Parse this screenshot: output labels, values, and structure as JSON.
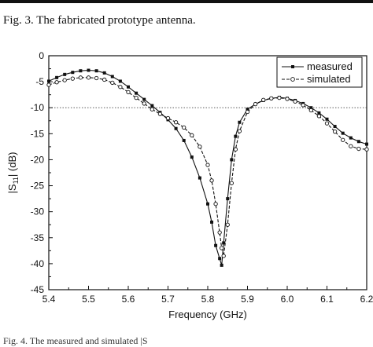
{
  "caption_above": "Fig. 3.   The fabricated prototype antenna.",
  "caption_below": "Fig. 4.   The measured and simulated |S",
  "chart_data": {
    "type": "line",
    "title": "",
    "xlabel": "Frequency (GHz)",
    "ylabel": "|S11| (dB)",
    "ylabel_parts": {
      "main": "|S",
      "sub": "11",
      "end": "| (dB)"
    },
    "xlim": [
      5.4,
      6.2
    ],
    "ylim": [
      -45,
      0
    ],
    "xticks": [
      "5.4",
      "5.5",
      "5.6",
      "5.7",
      "5.8",
      "5.9",
      "6.0",
      "6.1",
      "6.2"
    ],
    "yticks": [
      "0",
      "-5",
      "-10",
      "-15",
      "-20",
      "-25",
      "-30",
      "-35",
      "-40",
      "-45"
    ],
    "reference_line": {
      "y": -10,
      "style": "dotted"
    },
    "legend": {
      "placement": "top-right"
    },
    "grid": false,
    "series": [
      {
        "name": "measured",
        "marker": "filled-square",
        "x": [
          5.4,
          5.42,
          5.44,
          5.46,
          5.48,
          5.5,
          5.52,
          5.54,
          5.56,
          5.58,
          5.6,
          5.62,
          5.64,
          5.66,
          5.68,
          5.7,
          5.72,
          5.74,
          5.76,
          5.78,
          5.8,
          5.81,
          5.82,
          5.83,
          5.835,
          5.84,
          5.85,
          5.86,
          5.87,
          5.88,
          5.9,
          5.92,
          5.94,
          5.96,
          5.98,
          6.0,
          6.02,
          6.04,
          6.06,
          6.08,
          6.1,
          6.12,
          6.14,
          6.16,
          6.18,
          6.2
        ],
        "y": [
          -4.9,
          -4.2,
          -3.6,
          -3.2,
          -2.9,
          -2.8,
          -2.9,
          -3.3,
          -4.0,
          -4.9,
          -6.0,
          -7.2,
          -8.4,
          -9.6,
          -10.9,
          -12.3,
          -14.0,
          -16.3,
          -19.5,
          -23.5,
          -28.5,
          -32.0,
          -36.5,
          -39.0,
          -40.3,
          -36.0,
          -27.5,
          -20.0,
          -15.5,
          -12.8,
          -10.3,
          -9.3,
          -8.6,
          -8.2,
          -8.0,
          -8.2,
          -8.6,
          -9.2,
          -10.0,
          -11.0,
          -12.2,
          -13.6,
          -14.9,
          -15.8,
          -16.5,
          -17.0
        ]
      },
      {
        "name": "simulated",
        "marker": "open-circle",
        "x": [
          5.4,
          5.42,
          5.44,
          5.46,
          5.48,
          5.5,
          5.52,
          5.54,
          5.56,
          5.58,
          5.6,
          5.62,
          5.64,
          5.66,
          5.68,
          5.7,
          5.72,
          5.74,
          5.76,
          5.78,
          5.8,
          5.81,
          5.82,
          5.83,
          5.835,
          5.84,
          5.85,
          5.86,
          5.87,
          5.88,
          5.9,
          5.92,
          5.94,
          5.96,
          5.98,
          6.0,
          6.02,
          6.04,
          6.06,
          6.08,
          6.1,
          6.12,
          6.14,
          6.16,
          6.18,
          6.2
        ],
        "y": [
          -5.6,
          -5.1,
          -4.7,
          -4.4,
          -4.2,
          -4.2,
          -4.3,
          -4.6,
          -5.2,
          -6.0,
          -7.0,
          -8.1,
          -9.2,
          -10.3,
          -11.2,
          -12.0,
          -12.8,
          -13.8,
          -15.3,
          -17.5,
          -21.0,
          -24.0,
          -28.5,
          -34.0,
          -37.0,
          -38.5,
          -32.5,
          -24.5,
          -18.0,
          -14.5,
          -10.8,
          -9.3,
          -8.5,
          -8.2,
          -8.1,
          -8.3,
          -8.8,
          -9.5,
          -10.5,
          -11.6,
          -13.0,
          -14.6,
          -16.2,
          -17.4,
          -17.9,
          -18.0
        ]
      }
    ]
  }
}
